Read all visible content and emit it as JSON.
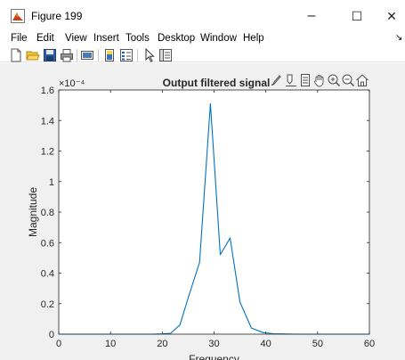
{
  "window": {
    "title": "Figure 199"
  },
  "window_controls": {
    "minimize": "–",
    "maximize": "☐",
    "close": "✕"
  },
  "menu": [
    "File",
    "Edit",
    "View",
    "Insert",
    "Tools",
    "Desktop",
    "Window",
    "Help"
  ],
  "toolbar_icons": [
    "new-figure-icon",
    "open-file-icon",
    "save-icon",
    "print-icon",
    "link-plot-icon",
    "insert-colorbar-icon",
    "insert-legend-icon",
    "edit-plot-icon",
    "property-inspector-icon"
  ],
  "axes_toolbar_icons": [
    "brush-icon",
    "data-tips-icon",
    "export-icon",
    "pan-icon",
    "zoom-in-icon",
    "zoom-out-icon",
    "home-icon"
  ],
  "colors": {
    "line": "#0072bd",
    "figure_bg": "#f0f0f0",
    "axes_bg": "#ffffff"
  },
  "chart_data": {
    "type": "line",
    "title": "Output filtered signal",
    "xlabel": "Frequency",
    "ylabel": "Magnitude",
    "exponent_label": "×10⁻⁴",
    "xlim": [
      0,
      60
    ],
    "ylim": [
      0,
      1.6
    ],
    "xticks": [
      "0",
      "10",
      "20",
      "30",
      "40",
      "50",
      "60"
    ],
    "yticks": [
      "0",
      "0.2",
      "0.4",
      "0.6",
      "0.8",
      "1",
      "1.2",
      "1.4",
      "1.6"
    ],
    "grid": false,
    "x": [
      0,
      2,
      4,
      6,
      8,
      10,
      12,
      14,
      16,
      18,
      20,
      21.6,
      23.4,
      25.2,
      27.2,
      29.3,
      31.2,
      33.1,
      35.0,
      37.2,
      39.5,
      41.5,
      43.5,
      46,
      50,
      55,
      60
    ],
    "values": [
      0,
      0,
      0,
      0,
      0,
      0,
      0,
      0,
      0,
      0,
      0.002,
      0.005,
      0.06,
      0.26,
      0.47,
      1.51,
      0.52,
      0.63,
      0.21,
      0.04,
      0.01,
      0.003,
      0.001,
      0,
      0,
      0,
      0
    ]
  }
}
